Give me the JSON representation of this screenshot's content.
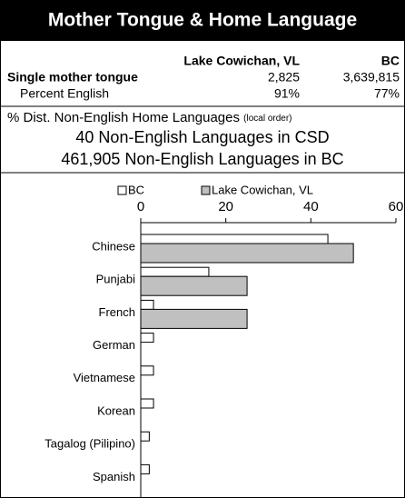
{
  "header": {
    "title": "Mother Tongue & Home Language"
  },
  "table": {
    "header": [
      "Lake Cowichan, VL",
      "BC"
    ],
    "rows": [
      [
        "Single mother tongue",
        "2,825",
        "3,639,815"
      ],
      [
        "Percent English",
        "91%",
        "77%"
      ]
    ]
  },
  "info": {
    "heading": "% Dist. Non-English Home Languages",
    "note": "(local order)",
    "lines": [
      "40 Non-English Languages in CSD",
      "461,905 Non-English Languages in BC"
    ]
  },
  "chart_data": {
    "type": "hbar",
    "categories": [
      "Chinese",
      "Punjabi",
      "French",
      "German",
      "Vietnamese",
      "Korean",
      "Tagalog (Pilipino)",
      "Spanish"
    ],
    "series": [
      {
        "name": "BC",
        "color": "#ffffff",
        "values": [
          44,
          16,
          3,
          3,
          3,
          3,
          2,
          2
        ]
      },
      {
        "name": "Lake Cowichan, VL",
        "color": "#c0c0c0",
        "values": [
          50,
          25,
          25,
          0,
          0,
          0,
          0,
          0
        ]
      }
    ],
    "xlim": [
      0,
      60
    ],
    "xticks": [
      0,
      20,
      40,
      60
    ],
    "legend": "top"
  }
}
